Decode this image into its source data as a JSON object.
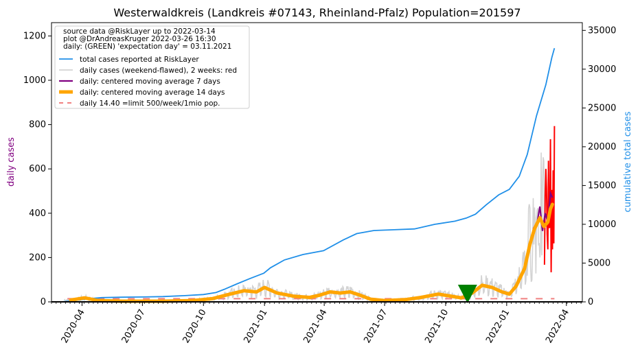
{
  "chart_data": {
    "type": "line",
    "title": "Westerwaldkreis (Landkreis #07143, Rheinland-Pfalz) Population=201597",
    "ylabel_left": "daily cases",
    "ylabel_right": "cumulative total cases",
    "ylim_left": [
      0,
      1260
    ],
    "ylim_right": [
      0,
      36000
    ],
    "yticks_left": [
      0,
      200,
      400,
      600,
      800,
      1000,
      1200
    ],
    "yticks_right": [
      0,
      5000,
      10000,
      15000,
      20000,
      25000,
      30000,
      35000
    ],
    "xlim": [
      "2020-02-15",
      "2022-04-25"
    ],
    "xticks": [
      "2020-04",
      "2020-07",
      "2020-10",
      "2021-01",
      "2021-04",
      "2021-07",
      "2021-10",
      "2022-01",
      "2022-04"
    ],
    "legend_position": "top-left",
    "legend": {
      "info_lines": [
        "source data @RiskLayer up to 2022-03-14",
        "plot @DrAndreasKruger 2022-03-26 16:30",
        "daily: (GREEN) 'expectation day' = 03.11.2021"
      ],
      "entries": [
        "total cases reported at RiskLayer",
        "daily cases (weekend-flawed), 2 weeks: red",
        "daily: centered moving average 7 days",
        "daily: centered moving average 14 days",
        "daily 14.40 =limit 500/week/1mio pop."
      ]
    },
    "colors": {
      "total": "#1f8fe8",
      "daily": "#d3d3d3",
      "recent": "#ff0000",
      "ma7": "#800080",
      "ma14": "#ffa500",
      "limit": "#f08080",
      "marker": "#008000"
    },
    "limit_value": 14.4,
    "expectation_day": "2021-11-03",
    "series": [
      {
        "name": "total cases reported at RiskLayer",
        "axis": "right",
        "points": [
          [
            "2020-03-01",
            0
          ],
          [
            "2020-03-20",
            150
          ],
          [
            "2020-04-10",
            400
          ],
          [
            "2020-05-01",
            550
          ],
          [
            "2020-06-01",
            600
          ],
          [
            "2020-07-01",
            630
          ],
          [
            "2020-08-01",
            680
          ],
          [
            "2020-09-01",
            800
          ],
          [
            "2020-10-01",
            950
          ],
          [
            "2020-10-20",
            1200
          ],
          [
            "2020-11-01",
            1600
          ],
          [
            "2020-11-20",
            2300
          ],
          [
            "2020-12-10",
            3000
          ],
          [
            "2020-12-31",
            3700
          ],
          [
            "2021-01-10",
            4400
          ],
          [
            "2021-01-31",
            5400
          ],
          [
            "2021-02-28",
            6100
          ],
          [
            "2021-03-31",
            6600
          ],
          [
            "2021-04-30",
            8000
          ],
          [
            "2021-05-20",
            8800
          ],
          [
            "2021-06-15",
            9200
          ],
          [
            "2021-07-15",
            9300
          ],
          [
            "2021-08-15",
            9400
          ],
          [
            "2021-09-15",
            10000
          ],
          [
            "2021-10-15",
            10400
          ],
          [
            "2021-11-01",
            10800
          ],
          [
            "2021-11-15",
            11300
          ],
          [
            "2021-12-01",
            12500
          ],
          [
            "2021-12-20",
            13800
          ],
          [
            "2022-01-05",
            14500
          ],
          [
            "2022-01-20",
            16200
          ],
          [
            "2022-02-01",
            19000
          ],
          [
            "2022-02-15",
            24000
          ],
          [
            "2022-03-01",
            28000
          ],
          [
            "2022-03-10",
            31500
          ],
          [
            "2022-03-14",
            32700
          ]
        ]
      },
      {
        "name": "daily: centered moving average 7 days",
        "axis": "left",
        "points": [
          [
            "2022-02-10",
            330
          ],
          [
            "2022-02-16",
            360
          ],
          [
            "2022-02-20",
            430
          ],
          [
            "2022-02-24",
            320
          ],
          [
            "2022-02-28",
            400
          ],
          [
            "2022-03-04",
            360
          ],
          [
            "2022-03-08",
            490
          ],
          [
            "2022-03-11",
            470
          ]
        ]
      },
      {
        "name": "daily: centered moving average 14 days",
        "axis": "left",
        "points": [
          [
            "2020-03-15",
            8
          ],
          [
            "2020-04-05",
            18
          ],
          [
            "2020-04-25",
            6
          ],
          [
            "2020-06-01",
            3
          ],
          [
            "2020-08-01",
            3
          ],
          [
            "2020-09-15",
            6
          ],
          [
            "2020-10-15",
            15
          ],
          [
            "2020-11-10",
            35
          ],
          [
            "2020-12-01",
            50
          ],
          [
            "2020-12-20",
            45
          ],
          [
            "2021-01-01",
            65
          ],
          [
            "2021-01-20",
            40
          ],
          [
            "2021-02-15",
            25
          ],
          [
            "2021-03-10",
            20
          ],
          [
            "2021-03-25",
            30
          ],
          [
            "2021-04-10",
            45
          ],
          [
            "2021-04-25",
            40
          ],
          [
            "2021-05-10",
            45
          ],
          [
            "2021-05-25",
            30
          ],
          [
            "2021-06-10",
            12
          ],
          [
            "2021-07-01",
            6
          ],
          [
            "2021-08-01",
            10
          ],
          [
            "2021-08-25",
            20
          ],
          [
            "2021-09-20",
            35
          ],
          [
            "2021-10-10",
            25
          ],
          [
            "2021-10-25",
            18
          ],
          [
            "2021-11-10",
            40
          ],
          [
            "2021-11-25",
            75
          ],
          [
            "2021-12-10",
            65
          ],
          [
            "2021-12-25",
            45
          ],
          [
            "2022-01-05",
            35
          ],
          [
            "2022-01-15",
            70
          ],
          [
            "2022-01-28",
            150
          ],
          [
            "2022-02-05",
            260
          ],
          [
            "2022-02-12",
            330
          ],
          [
            "2022-02-20",
            380
          ],
          [
            "2022-02-26",
            340
          ],
          [
            "2022-03-04",
            360
          ],
          [
            "2022-03-08",
            420
          ],
          [
            "2022-03-11",
            440
          ]
        ]
      },
      {
        "name": "daily 14.40 =limit 500/week/1mio pop.",
        "axis": "left",
        "dashed": true,
        "points": [
          [
            "2020-03-10",
            14.4
          ],
          [
            "2022-03-14",
            14.4
          ]
        ]
      }
    ]
  }
}
